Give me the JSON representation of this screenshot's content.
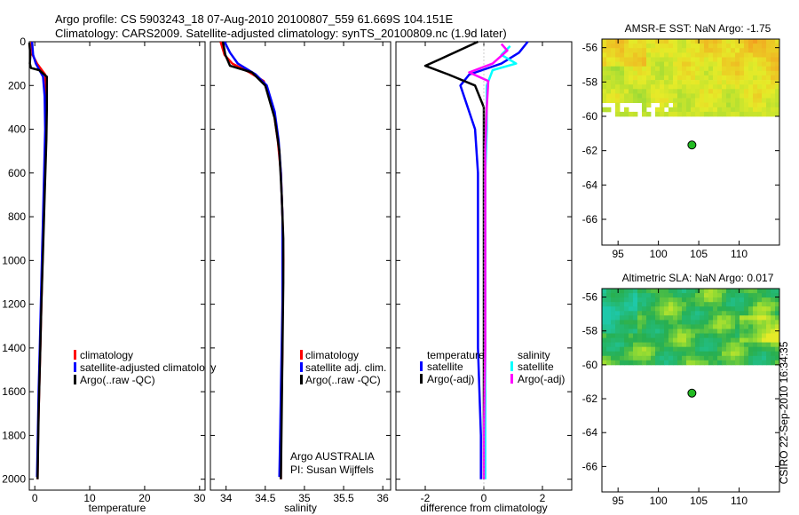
{
  "header": {
    "line1": "Argo profile: CS 5903243_18 07-Aug-2010 20100807_559 61.669S 104.151E",
    "line2": "Climatology: CARS2009. Satellite-adjusted climatology: synTS_20100809.nc (1.9d later)"
  },
  "footer": {
    "stamp": "CSIRO 22-Sep-2010 16:34:35",
    "argo_label": "Argo AUSTRALIA",
    "pi_label": "PI: Susan Wijffels"
  },
  "colors": {
    "climatology": "#ff0000",
    "satellite": "#0000ff",
    "argo": "#000000",
    "sal_satellite": "#00ffff",
    "sal_argo": "#ff00ff",
    "float_marker": "#22bb22"
  },
  "chart_data": [
    {
      "type": "line",
      "name": "temperature",
      "xlabel": "temperature",
      "ylabel": "",
      "xlim": [
        -1,
        31
      ],
      "ylim": [
        2050,
        0
      ],
      "xticks": [
        0,
        10,
        20,
        30
      ],
      "yticks": [
        0,
        200,
        400,
        600,
        800,
        1000,
        1200,
        1400,
        1600,
        1800,
        2000
      ],
      "legend": [
        "climatology",
        "satellite-adjusted climatology",
        "Argo(..raw -QC)"
      ],
      "series": [
        {
          "name": "climatology",
          "color": "#ff0000",
          "points": [
            [
              -0.6,
              0
            ],
            [
              -0.4,
              60
            ],
            [
              0.4,
              100
            ],
            [
              1.9,
              150
            ],
            [
              2.1,
              250
            ],
            [
              2.0,
              400
            ],
            [
              1.8,
              600
            ],
            [
              1.6,
              800
            ],
            [
              1.4,
              1000
            ],
            [
              1.2,
              1200
            ],
            [
              1.0,
              1400
            ],
            [
              0.8,
              1600
            ],
            [
              0.6,
              1800
            ],
            [
              0.5,
              2000
            ]
          ]
        },
        {
          "name": "satellite-adjusted climatology",
          "color": "#0000ff",
          "points": [
            [
              -0.5,
              0
            ],
            [
              -0.3,
              60
            ],
            [
              0.2,
              100
            ],
            [
              1.5,
              160
            ],
            [
              1.8,
              250
            ],
            [
              1.9,
              400
            ],
            [
              1.7,
              600
            ],
            [
              1.5,
              800
            ],
            [
              1.3,
              1000
            ],
            [
              1.1,
              1200
            ],
            [
              0.9,
              1400
            ],
            [
              0.7,
              1600
            ],
            [
              0.55,
              1800
            ],
            [
              0.4,
              1990
            ]
          ]
        },
        {
          "name": "Argo(..raw -QC)",
          "color": "#000000",
          "points": [
            [
              -1.0,
              5
            ],
            [
              -0.8,
              60
            ],
            [
              -0.9,
              100
            ],
            [
              -0.7,
              120
            ],
            [
              0.8,
              130
            ],
            [
              2.2,
              160
            ],
            [
              2.2,
              300
            ],
            [
              2.1,
              450
            ],
            [
              1.8,
              700
            ],
            [
              1.5,
              950
            ],
            [
              1.2,
              1200
            ],
            [
              1.0,
              1400
            ],
            [
              0.7,
              1700
            ],
            [
              0.5,
              2000
            ]
          ]
        }
      ]
    },
    {
      "type": "line",
      "name": "salinity",
      "xlabel": "salinity",
      "ylabel": "",
      "xlim": [
        33.8,
        36.1
      ],
      "ylim": [
        2050,
        0
      ],
      "xticks": [
        34,
        34.5,
        35,
        35.5,
        36
      ],
      "yticks": [
        0,
        200,
        400,
        600,
        800,
        1000,
        1200,
        1400,
        1600,
        1800,
        2000
      ],
      "legend": [
        "climatology",
        "satellite adj. clim.",
        "Argo(..raw -QC)"
      ],
      "series": [
        {
          "name": "climatology",
          "color": "#ff0000",
          "points": [
            [
              33.93,
              0
            ],
            [
              33.98,
              60
            ],
            [
              34.08,
              100
            ],
            [
              34.3,
              140
            ],
            [
              34.48,
              180
            ],
            [
              34.6,
              300
            ],
            [
              34.66,
              450
            ],
            [
              34.7,
              600
            ],
            [
              34.72,
              800
            ],
            [
              34.73,
              1000
            ],
            [
              34.72,
              1200
            ],
            [
              34.72,
              1400
            ],
            [
              34.71,
              1600
            ],
            [
              34.7,
              1800
            ],
            [
              34.7,
              2000
            ]
          ]
        },
        {
          "name": "satellite adj. clim.",
          "color": "#0000ff",
          "points": [
            [
              33.98,
              0
            ],
            [
              34.05,
              50
            ],
            [
              34.15,
              100
            ],
            [
              34.38,
              150
            ],
            [
              34.52,
              200
            ],
            [
              34.62,
              320
            ],
            [
              34.67,
              450
            ],
            [
              34.7,
              600
            ],
            [
              34.72,
              800
            ],
            [
              34.72,
              1000
            ],
            [
              34.72,
              1200
            ],
            [
              34.71,
              1400
            ],
            [
              34.7,
              1600
            ],
            [
              34.69,
              1800
            ],
            [
              34.68,
              1990
            ]
          ]
        },
        {
          "name": "Argo(..raw -QC)",
          "color": "#000000",
          "points": [
            [
              33.96,
              0
            ],
            [
              33.99,
              60
            ],
            [
              34.05,
              110
            ],
            [
              34.33,
              140
            ],
            [
              34.5,
              200
            ],
            [
              34.62,
              350
            ],
            [
              34.68,
              500
            ],
            [
              34.71,
              700
            ],
            [
              34.73,
              900
            ],
            [
              34.73,
              1100
            ],
            [
              34.72,
              1400
            ],
            [
              34.71,
              1700
            ],
            [
              34.7,
              2000
            ]
          ]
        }
      ]
    },
    {
      "type": "line",
      "name": "difference from climatology",
      "xlabel": "difference from climatology",
      "ylabel": "",
      "xlim": [
        -3,
        3
      ],
      "ylim": [
        2050,
        0
      ],
      "xticks": [
        -2,
        0,
        2
      ],
      "yticks": [
        0,
        200,
        400,
        600,
        800,
        1000,
        1200,
        1400,
        1600,
        1800,
        2000
      ],
      "legend_temperature_title": "temperature",
      "legend_salinity_title": "salinity",
      "legend": [
        "satellite",
        "Argo(-adj)",
        "satellite",
        "Argo(-adj)"
      ],
      "series": [
        {
          "name": "temperature satellite",
          "color": "#0000ff",
          "points": [
            [
              1.5,
              0
            ],
            [
              1.2,
              50
            ],
            [
              0.6,
              100
            ],
            [
              -0.5,
              150
            ],
            [
              -0.8,
              200
            ],
            [
              -0.3,
              400
            ],
            [
              -0.2,
              600
            ],
            [
              -0.2,
              1000
            ],
            [
              -0.2,
              1400
            ],
            [
              -0.1,
              1800
            ],
            [
              -0.1,
              2000
            ]
          ]
        },
        {
          "name": "temperature Argo(-adj)",
          "color": "#000000",
          "points": [
            [
              -0.2,
              0
            ],
            [
              -1.5,
              80
            ],
            [
              -2.0,
              110
            ],
            [
              -1.2,
              150
            ],
            [
              -0.3,
              200
            ],
            [
              0,
              300
            ],
            [
              0,
              600
            ],
            [
              0,
              1000
            ],
            [
              0,
              1400
            ],
            [
              0,
              1800
            ],
            [
              0,
              2000
            ]
          ]
        },
        {
          "name": "salinity satellite",
          "color": "#00ffff",
          "points": [
            [
              0.9,
              20
            ],
            [
              0.6,
              60
            ],
            [
              1.1,
              100
            ],
            [
              0.3,
              130
            ],
            [
              0.1,
              200
            ],
            [
              0.1,
              400
            ],
            [
              0.05,
              600
            ],
            [
              0.05,
              1000
            ],
            [
              0.05,
              1400
            ],
            [
              0.05,
              1800
            ],
            [
              0.05,
              2000
            ]
          ]
        },
        {
          "name": "salinity Argo(-adj)",
          "color": "#ff00ff",
          "points": [
            [
              0.6,
              10
            ],
            [
              0.8,
              40
            ],
            [
              0.3,
              100
            ],
            [
              -0.5,
              140
            ],
            [
              0.15,
              180
            ],
            [
              0.1,
              300
            ],
            [
              0.05,
              500
            ],
            [
              0.05,
              1000
            ],
            [
              0.05,
              1400
            ],
            [
              0,
              1800
            ],
            [
              0,
              2000
            ]
          ]
        }
      ]
    },
    {
      "type": "heatmap",
      "name": "sst_map",
      "title": "AMSR-E SST: NaN Argo: -1.75",
      "xlim": [
        93,
        115
      ],
      "ylim": [
        -67.5,
        -55.5
      ],
      "xticks": [
        95,
        100,
        105,
        110
      ],
      "yticks": [
        -56,
        -58,
        -60,
        -62,
        -64,
        -66
      ],
      "data_lat_range": [
        -60,
        -55.7
      ],
      "float_marker": {
        "lon": 104.151,
        "lat": -61.669
      }
    },
    {
      "type": "heatmap",
      "name": "sla_map",
      "title": "Altimetric SLA: NaN Argo: 0.017",
      "xlim": [
        93,
        115
      ],
      "ylim": [
        -67.5,
        -55.5
      ],
      "xticks": [
        95,
        100,
        105,
        110
      ],
      "yticks": [
        -56,
        -58,
        -60,
        -62,
        -64,
        -66
      ],
      "data_lat_range": [
        -60,
        -55.7
      ],
      "float_marker": {
        "lon": 104.151,
        "lat": -61.669
      }
    }
  ]
}
